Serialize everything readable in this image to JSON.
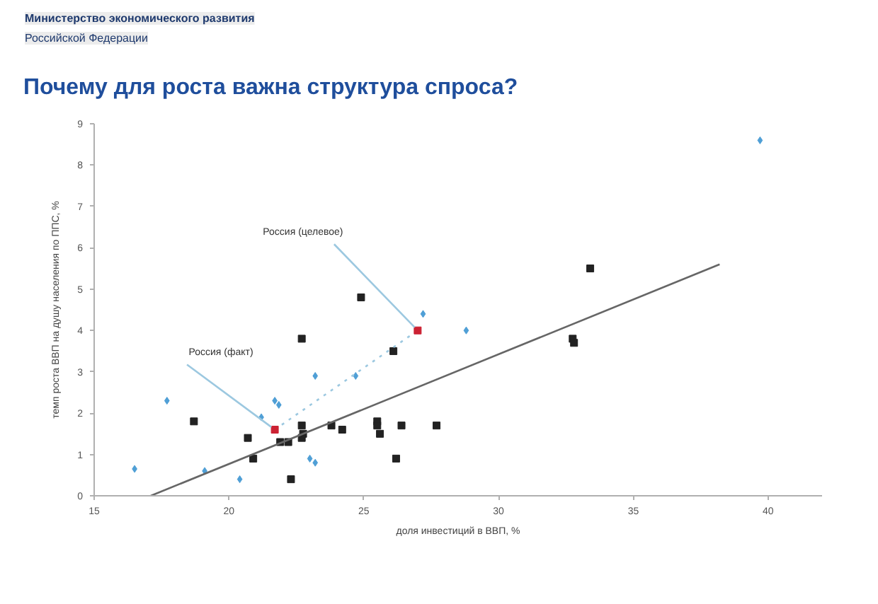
{
  "chart_data": {
    "type": "scatter",
    "title": "Почему для роста важна структура спроса?",
    "xlabel": "доля инвестиций в ВВП, %",
    "ylabel": "темп роста ВВП на душу населения по ППС, %",
    "xlim": [
      15,
      42
    ],
    "xticks": [
      15,
      20,
      25,
      30,
      35,
      40
    ],
    "ylim": [
      0,
      9
    ],
    "yticks": [
      0,
      1,
      2,
      3,
      4,
      5,
      6,
      7,
      8,
      9
    ],
    "grid": false,
    "series": [
      {
        "color": "#222222",
        "marker": "square",
        "x": [
          24.9,
          22.7,
          26.1,
          33.4,
          32.75,
          32.8,
          18.7,
          20.7,
          20.9,
          21.9,
          22.2,
          22.3,
          22.7,
          22.75,
          22.7,
          23.8,
          24.2,
          25.5,
          25.5,
          25.6,
          26.2,
          26.4,
          27.7
        ],
        "values": [
          4.8,
          3.8,
          3.5,
          5.5,
          3.8,
          3.7,
          1.8,
          1.4,
          0.9,
          1.3,
          1.3,
          0.4,
          1.7,
          1.5,
          1.4,
          1.7,
          1.6,
          1.8,
          1.7,
          1.5,
          0.9,
          1.7,
          1.7
        ]
      },
      {
        "color": "#4f9fd6",
        "marker": "diamond",
        "x": [
          16.5,
          17.7,
          19.1,
          20.4,
          21.2,
          21.7,
          21.85,
          23.0,
          23.2,
          23.2,
          24.7,
          27.2,
          28.8,
          39.7
        ],
        "values": [
          0.65,
          2.3,
          0.6,
          0.4,
          1.9,
          2.3,
          2.2,
          0.9,
          0.8,
          2.9,
          2.9,
          4.4,
          4.0,
          8.6
        ]
      },
      {
        "type": "line",
        "color": "#9cc8e0",
        "line_style": "dotted",
        "marker": "none",
        "x": [
          21.7,
          27.0
        ],
        "values": [
          1.6,
          4.0
        ]
      },
      {
        "color": "#cc2233",
        "marker": "square",
        "x": [
          21.7,
          27.0
        ],
        "values": [
          1.6,
          4.0
        ]
      },
      {
        "type": "line",
        "color": "#666666",
        "line_style": "solid",
        "marker": "none",
        "x": [
          17.1,
          38.2
        ],
        "values": [
          0,
          5.6
        ]
      }
    ],
    "annotations": [
      "Министерство экономического развития",
      "Российской Федерации",
      {
        "text": "Россия (целевое)",
        "x": 27.0,
        "y": 4.0
      },
      {
        "text": "Россия (факт)",
        "x": 21.7,
        "y": 1.6
      }
    ]
  }
}
